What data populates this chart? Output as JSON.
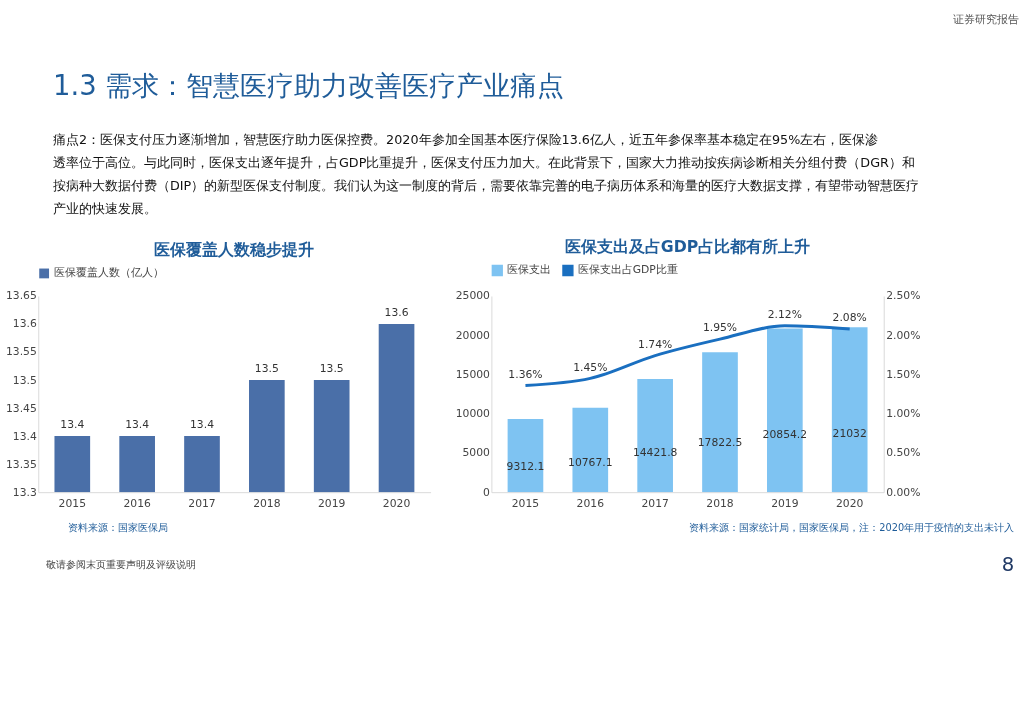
{
  "chart_data": [
    {
      "type": "bar",
      "title": "医保覆盖人数稳步提升",
      "categories": [
        "2015",
        "2016",
        "2017",
        "2018",
        "2019",
        "2020"
      ],
      "series": [
        {
          "name": "医保覆盖人数（亿人）",
          "color": "#4a6fa8",
          "values": [
            13.4,
            13.4,
            13.4,
            13.5,
            13.5,
            13.6
          ]
        }
      ],
      "ylim": [
        13.3,
        13.65
      ],
      "yticks": [
        13.3,
        13.35,
        13.4,
        13.45,
        13.5,
        13.55,
        13.6,
        13.65
      ],
      "data_labels": true,
      "grid": false,
      "legend": "top",
      "annotations": [
        "证券研究报告",
        "1.3 需求：智慧医疗助力改善医疗产业痛点",
        "痛点2：医保支付压力逐渐增加，智慧医疗助力医保控费。2020年参加全国基本医疗保险13.6亿人，近五年参保率基本稳定在95%左右，医保渗透率位于高位。与此同时，医保支出逐年提升，占GDP比重提升，医保支付压力加大。在此背景下，国家大力推动按疾病诊断相关分组付费（DGR）和按病种大数据付费（DIP）的新型医保支付制度。我们认为这一制度的背后，需要依靠完善的电子病历体系和海量的医疗大数据支撑，有望带动智慧医疗产业的快速发展。",
        "资料来源：国家医保局",
        "敬请参阅末页重要声明及评级说明",
        "8"
      ]
    },
    {
      "type": "bar",
      "title": "医保支出及占GDP占比都有所上升",
      "categories": [
        "2015",
        "2016",
        "2017",
        "2018",
        "2019",
        "2020"
      ],
      "series": [
        {
          "name": "医保支出",
          "color": "#7ec3f2",
          "values": [
            9312.1,
            10767.1,
            14421.8,
            17822.5,
            20854.2,
            21032
          ]
        },
        {
          "name": "医保支出占GDP比重",
          "type": "line",
          "axis": "y2",
          "color": "#1a6fc0",
          "values": [
            1.36,
            1.45,
            1.74,
            1.95,
            2.12,
            2.08
          ],
          "value_labels": [
            "1.36%",
            "1.45%",
            "1.74%",
            "1.95%",
            "2.12%",
            "2.08%"
          ]
        }
      ],
      "ylim": [
        0,
        25000
      ],
      "yticks": [
        0,
        5000,
        10000,
        15000,
        20000,
        25000
      ],
      "y2lim": [
        0,
        2.5
      ],
      "y2ticks": [
        {
          "value": 0,
          "label": "0.00%"
        },
        {
          "value": 0.5,
          "label": "0.50%"
        },
        {
          "value": 1.0,
          "label": "1.00%"
        },
        {
          "value": 1.5,
          "label": "1.50%"
        },
        {
          "value": 2.0,
          "label": "2.00%"
        },
        {
          "value": 2.5,
          "label": "2.50%"
        }
      ],
      "data_labels": true,
      "grid": false,
      "legend": "top",
      "annotations": [
        "资料来源：国家统计局，国家医保局，注：2020年用于疫情的支出未计入"
      ]
    }
  ]
}
